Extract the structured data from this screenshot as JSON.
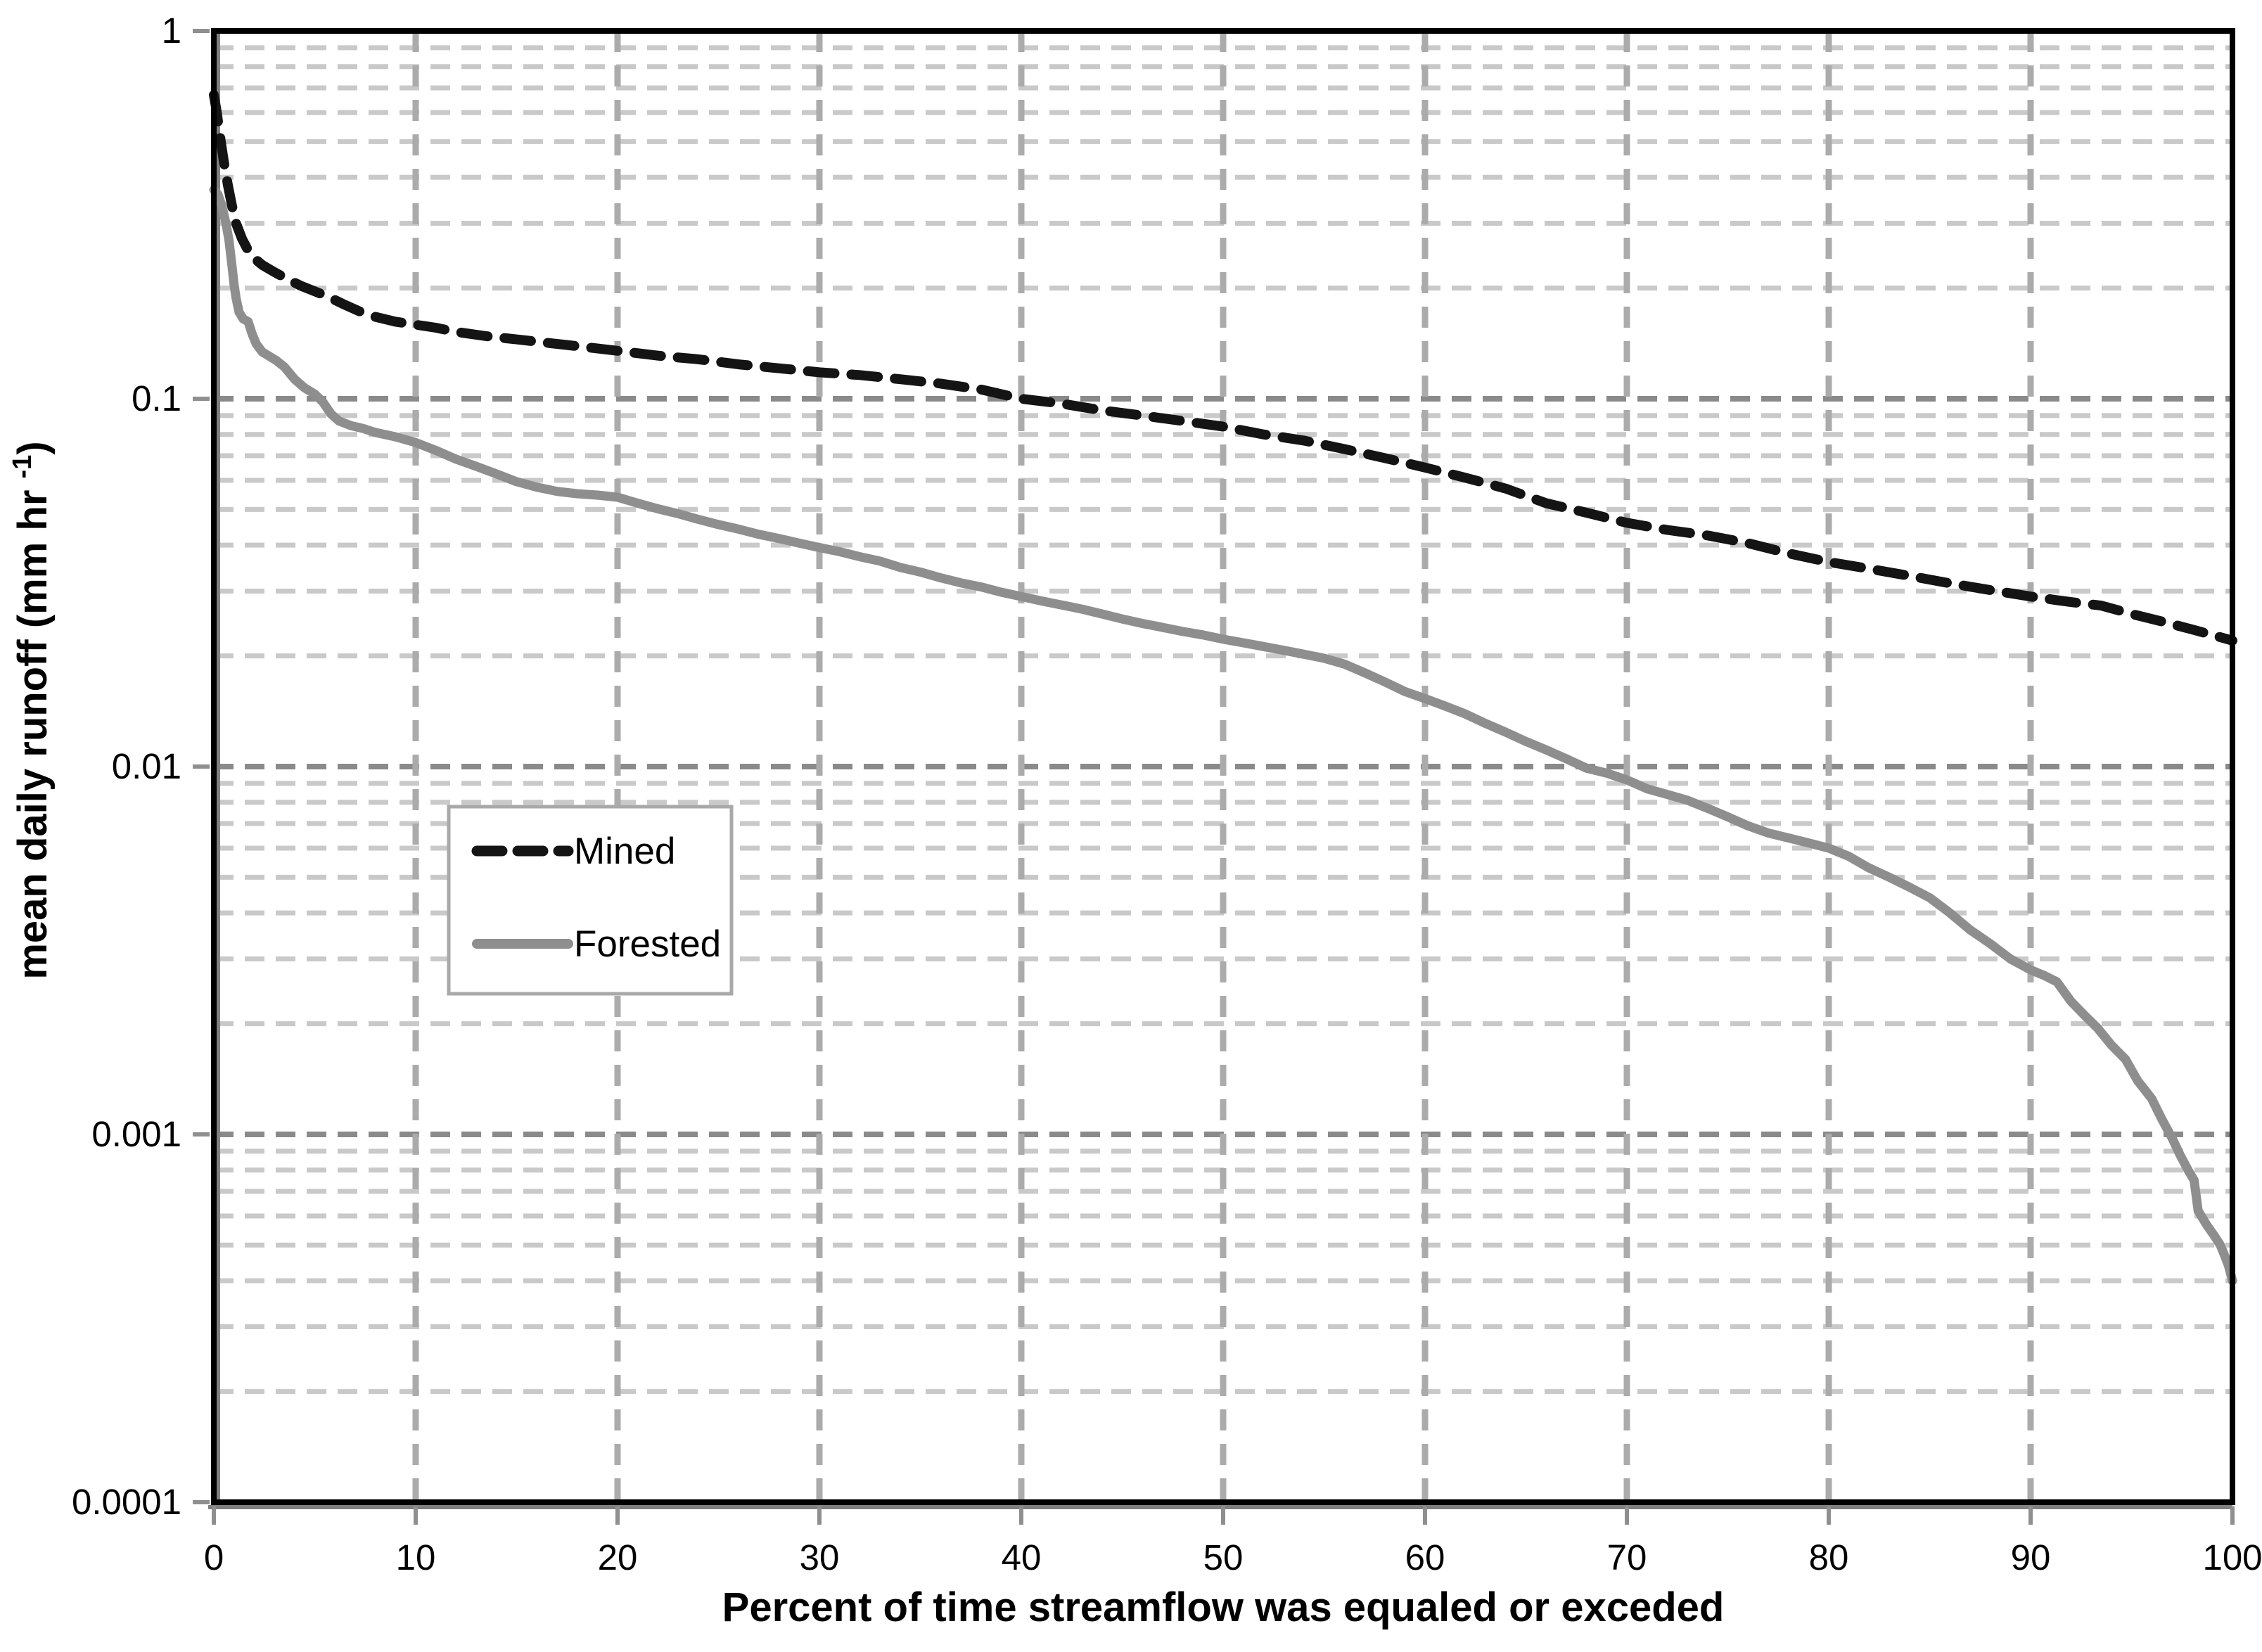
{
  "chart_data": {
    "type": "line",
    "title": "",
    "xlabel": "Percent of time streamflow was equaled or exceded",
    "ylabel": "mean daily runoff (mm hr -1)",
    "ylabel_parts": {
      "prefix": "mean daily runoff (mm hr ",
      "superscript": "-1",
      "suffix": ")"
    },
    "x_axis": {
      "min": 0,
      "max": 100,
      "tick_values": [
        0,
        10,
        20,
        30,
        40,
        50,
        60,
        70,
        80,
        90,
        100
      ],
      "tick_labels": [
        "0",
        "10",
        "20",
        "30",
        "40",
        "50",
        "60",
        "70",
        "80",
        "90",
        "100"
      ]
    },
    "y_axis": {
      "scale": "log",
      "min": 0.0001,
      "max": 1,
      "tick_values": [
        1,
        0.1,
        0.01,
        0.001,
        0.0001
      ],
      "tick_labels": [
        "1",
        "0.1",
        "0.01",
        "0.001",
        "0.0001"
      ]
    },
    "grid": {
      "horizontal_minor": true,
      "horizontal_major_decades": true,
      "vertical_every": 10
    },
    "legend": {
      "position": "inside-upper-left",
      "entries": [
        {
          "label": "Mined",
          "style": "dashed",
          "color": "#141414"
        },
        {
          "label": "Forested",
          "style": "solid",
          "color": "#8e8e8e"
        }
      ]
    },
    "series": [
      {
        "name": "Mined",
        "points": [
          [
            0,
            0.67
          ],
          [
            0.15,
            0.6
          ],
          [
            0.3,
            0.52
          ],
          [
            0.5,
            0.44
          ],
          [
            0.7,
            0.38
          ],
          [
            0.9,
            0.335
          ],
          [
            1.1,
            0.3
          ],
          [
            1.4,
            0.272
          ],
          [
            1.7,
            0.253
          ],
          [
            2,
            0.241
          ],
          [
            2.4,
            0.231
          ],
          [
            3,
            0.221
          ],
          [
            3.6,
            0.212
          ],
          [
            4.3,
            0.203
          ],
          [
            5,
            0.196
          ],
          [
            5.7,
            0.189
          ],
          [
            6.4,
            0.181
          ],
          [
            7.2,
            0.173
          ],
          [
            8,
            0.167
          ],
          [
            9,
            0.162
          ],
          [
            10,
            0.159
          ],
          [
            11,
            0.156
          ],
          [
            12,
            0.152
          ],
          [
            13.5,
            0.148
          ],
          [
            15,
            0.145
          ],
          [
            16.5,
            0.142
          ],
          [
            18,
            0.139
          ],
          [
            20,
            0.135
          ],
          [
            22,
            0.131
          ],
          [
            24,
            0.128
          ],
          [
            26,
            0.124
          ],
          [
            28,
            0.121
          ],
          [
            30,
            0.118
          ],
          [
            32,
            0.116
          ],
          [
            34,
            0.113
          ],
          [
            36,
            0.11
          ],
          [
            38,
            0.106
          ],
          [
            40,
            0.1
          ],
          [
            42,
            0.097
          ],
          [
            44,
            0.093
          ],
          [
            46,
            0.09
          ],
          [
            48,
            0.087
          ],
          [
            50,
            0.084
          ],
          [
            52,
            0.08
          ],
          [
            54,
            0.077
          ],
          [
            56,
            0.073
          ],
          [
            58,
            0.069
          ],
          [
            60,
            0.065
          ],
          [
            62,
            0.061
          ],
          [
            64,
            0.057
          ],
          [
            66,
            0.052
          ],
          [
            68,
            0.049
          ],
          [
            70,
            0.046
          ],
          [
            72,
            0.044
          ],
          [
            74,
            0.0425
          ],
          [
            76,
            0.0405
          ],
          [
            78,
            0.038
          ],
          [
            80,
            0.036
          ],
          [
            82,
            0.0345
          ],
          [
            84,
            0.033
          ],
          [
            86,
            0.0315
          ],
          [
            88,
            0.0302
          ],
          [
            90,
            0.029
          ],
          [
            92,
            0.028
          ],
          [
            93.5,
            0.0274
          ],
          [
            95,
            0.026
          ],
          [
            96.5,
            0.0248
          ],
          [
            98,
            0.0236
          ],
          [
            99,
            0.0228
          ],
          [
            100,
            0.022
          ]
        ]
      },
      {
        "name": "Forested",
        "points": [
          [
            0,
            0.37
          ],
          [
            0.2,
            0.36
          ],
          [
            0.4,
            0.335
          ],
          [
            0.6,
            0.3
          ],
          [
            0.75,
            0.27
          ],
          [
            0.9,
            0.23
          ],
          [
            1,
            0.205
          ],
          [
            1.1,
            0.188
          ],
          [
            1.25,
            0.172
          ],
          [
            1.45,
            0.165
          ],
          [
            1.7,
            0.162
          ],
          [
            1.9,
            0.15
          ],
          [
            2.1,
            0.141
          ],
          [
            2.4,
            0.134
          ],
          [
            2.8,
            0.13
          ],
          [
            3.1,
            0.127
          ],
          [
            3.5,
            0.122
          ],
          [
            4,
            0.113
          ],
          [
            4.5,
            0.107
          ],
          [
            5,
            0.103
          ],
          [
            5.4,
            0.098
          ],
          [
            5.8,
            0.091
          ],
          [
            6.2,
            0.087
          ],
          [
            6.8,
            0.0845
          ],
          [
            7.4,
            0.083
          ],
          [
            8,
            0.081
          ],
          [
            9,
            0.0788
          ],
          [
            10,
            0.076
          ],
          [
            11,
            0.0724
          ],
          [
            12,
            0.0685
          ],
          [
            13,
            0.0655
          ],
          [
            14,
            0.0625
          ],
          [
            15,
            0.0595
          ],
          [
            16,
            0.0575
          ],
          [
            17,
            0.056
          ],
          [
            18,
            0.0552
          ],
          [
            19,
            0.0547
          ],
          [
            20,
            0.054
          ],
          [
            21,
            0.052
          ],
          [
            22,
            0.0502
          ],
          [
            23,
            0.0487
          ],
          [
            24,
            0.047
          ],
          [
            25,
            0.0455
          ],
          [
            26,
            0.0442
          ],
          [
            27,
            0.0428
          ],
          [
            28,
            0.0417
          ],
          [
            29,
            0.0405
          ],
          [
            30,
            0.0394
          ],
          [
            31,
            0.0384
          ],
          [
            32,
            0.0372
          ],
          [
            33,
            0.0362
          ],
          [
            34,
            0.0348
          ],
          [
            35,
            0.0338
          ],
          [
            36,
            0.0326
          ],
          [
            37,
            0.0316
          ],
          [
            38,
            0.0308
          ],
          [
            39,
            0.0298
          ],
          [
            40,
            0.029
          ],
          [
            41,
            0.0282
          ],
          [
            42,
            0.0275
          ],
          [
            43,
            0.0268
          ],
          [
            44,
            0.026
          ],
          [
            45,
            0.0252
          ],
          [
            46,
            0.0245
          ],
          [
            47,
            0.0239
          ],
          [
            48,
            0.0233
          ],
          [
            49,
            0.0228
          ],
          [
            50,
            0.0222
          ],
          [
            51,
            0.0217
          ],
          [
            52,
            0.0212
          ],
          [
            53,
            0.0207
          ],
          [
            54,
            0.0202
          ],
          [
            55,
            0.0197
          ],
          [
            56,
            0.019
          ],
          [
            57,
            0.018
          ],
          [
            58,
            0.017
          ],
          [
            59,
            0.016
          ],
          [
            60,
            0.0153
          ],
          [
            61,
            0.0146
          ],
          [
            62,
            0.0139
          ],
          [
            63,
            0.0131
          ],
          [
            64,
            0.0124
          ],
          [
            65,
            0.0117
          ],
          [
            66,
            0.0111
          ],
          [
            67,
            0.0105
          ],
          [
            68,
            0.0099
          ],
          [
            69,
            0.0096
          ],
          [
            70,
            0.0092
          ],
          [
            71,
            0.0087
          ],
          [
            72,
            0.0084
          ],
          [
            73,
            0.0081
          ],
          [
            74,
            0.0077
          ],
          [
            75,
            0.0073
          ],
          [
            76,
            0.0069
          ],
          [
            77,
            0.0066
          ],
          [
            78,
            0.0064
          ],
          [
            79,
            0.0062
          ],
          [
            80,
            0.006
          ],
          [
            81,
            0.0057
          ],
          [
            82,
            0.0053
          ],
          [
            83,
            0.005
          ],
          [
            84,
            0.0047
          ],
          [
            85,
            0.0044
          ],
          [
            86,
            0.004
          ],
          [
            87,
            0.0036
          ],
          [
            88,
            0.0033
          ],
          [
            89,
            0.003
          ],
          [
            90,
            0.0028
          ],
          [
            90.7,
            0.0027
          ],
          [
            91.3,
            0.0026
          ],
          [
            92,
            0.0023
          ],
          [
            92.7,
            0.0021
          ],
          [
            93.3,
            0.00195
          ],
          [
            94,
            0.00175
          ],
          [
            94.7,
            0.0016
          ],
          [
            95.3,
            0.0014
          ],
          [
            96,
            0.00125
          ],
          [
            96.5,
            0.0011
          ],
          [
            97,
            0.00098
          ],
          [
            97.4,
            0.00088
          ],
          [
            97.8,
            0.0008
          ],
          [
            98.1,
            0.00075
          ],
          [
            98.3,
            0.00062
          ],
          [
            98.7,
            0.00057
          ],
          [
            99.1,
            0.00053
          ],
          [
            99.4,
            0.0005
          ],
          [
            99.6,
            0.00047
          ],
          [
            99.8,
            0.00044
          ],
          [
            100,
            0.0004
          ]
        ]
      }
    ]
  },
  "colors": {
    "mined_line": "#141414",
    "forested_line": "#8e8e8e",
    "grid_minor": "#c9c9c9",
    "grid_decade": "#8a8a8a",
    "grid_vertical": "#ababab",
    "axis_gray": "#7f7f7f",
    "tick": "#8f8f8f",
    "plot_border": "#000000",
    "legend_border": "#a9a9a9",
    "text": "#000000"
  }
}
